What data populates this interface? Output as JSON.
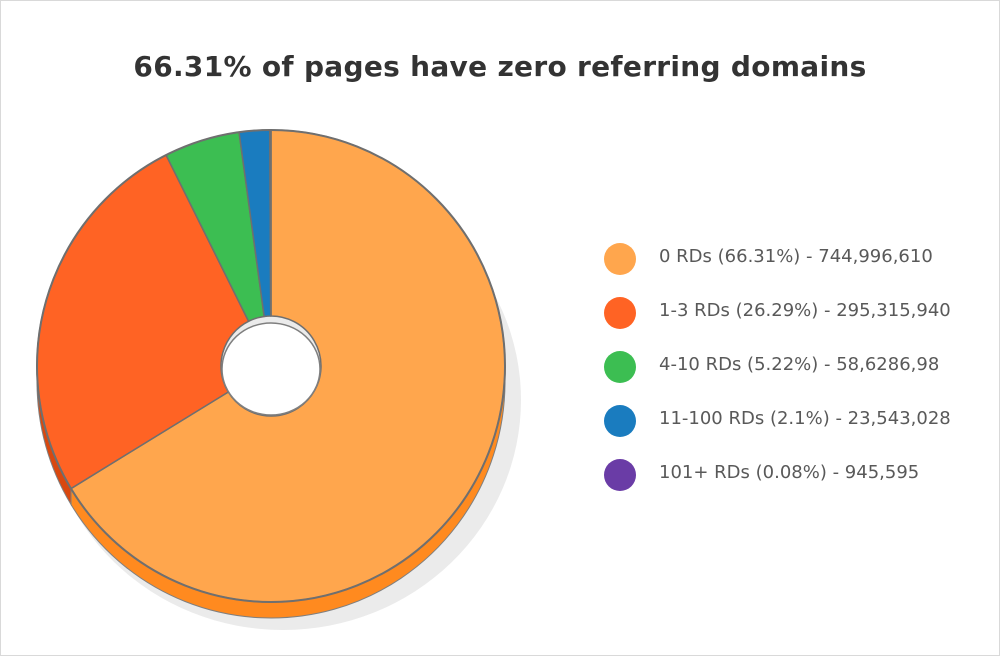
{
  "chart_data": {
    "type": "pie",
    "variant": "3d-donut",
    "title": "66.31% of pages have zero referring domains",
    "slices": [
      {
        "label": "0 RDs (66.31%) - 744,996,610",
        "value": 66.31,
        "color": "#ffa64d",
        "side_color": "#ff8a1f"
      },
      {
        "label": "1-3 RDs (26.29%) - 295,315,940",
        "value": 26.29,
        "color": "#ff6324",
        "side_color": "#d9480f"
      },
      {
        "label": "4-10 RDs (5.22%) - 58,6286,98",
        "value": 5.22,
        "color": "#3cbe52",
        "side_color": "#2a9a3d"
      },
      {
        "label": "11-100 RDs (2.1%) - 23,543,028",
        "value": 2.1,
        "color": "#1a7cbf",
        "side_color": "#135e91"
      },
      {
        "label": "101+ RDs (0.08%) - 945,595",
        "value": 0.08,
        "color": "#6a3ca6",
        "side_color": "#4e2b7b"
      }
    ],
    "legend_position": "right",
    "start_angle": "top",
    "direction": "clockwise"
  }
}
